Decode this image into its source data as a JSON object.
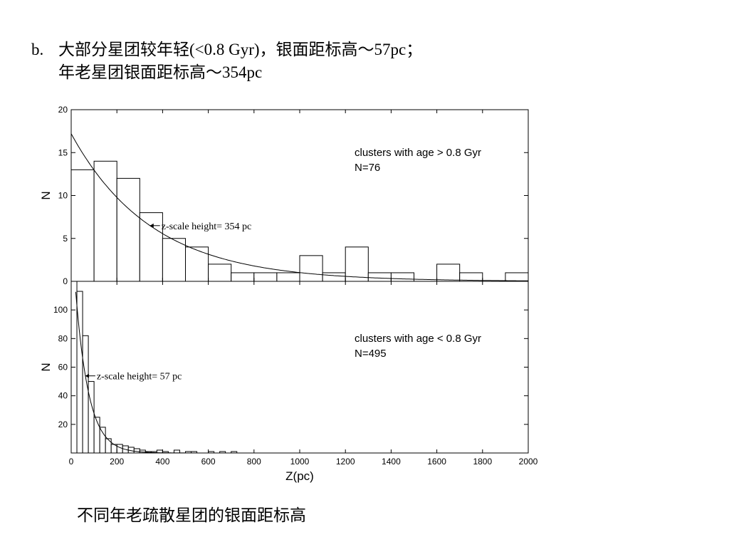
{
  "heading": {
    "marker": "b.",
    "line1": "大部分星团较年轻(<0.8 Gyr)，银面距标高～57pc；",
    "line2": "年老星团银面距标高～354pc"
  },
  "caption": "不同年老疏散星团的银面距标高",
  "chart_data": [
    {
      "type": "bar",
      "panel": "top",
      "ylabel": "N",
      "xlim": [
        0,
        2000
      ],
      "ylim": [
        0,
        20
      ],
      "yticks": [
        0,
        5,
        10,
        15,
        20
      ],
      "legend": [
        "clusters with age > 0.8 Gyr",
        "N=76"
      ],
      "legend_placement": "top-right",
      "annotation": "z-scale height= 354 pc",
      "bin_edges": [
        0,
        100,
        200,
        300,
        400,
        500,
        600,
        700,
        800,
        900,
        1000,
        1100,
        1200,
        1300,
        1400,
        1500,
        1600,
        1700,
        1800,
        1900,
        2000
      ],
      "counts": [
        13,
        14,
        12,
        8,
        5,
        4,
        2,
        1,
        1,
        1,
        3,
        1,
        4,
        1,
        1,
        0,
        2,
        1,
        0,
        1
      ],
      "fit": {
        "form": "exponential",
        "n0": 17.2,
        "scale_height": 354
      }
    },
    {
      "type": "bar",
      "panel": "bottom",
      "ylabel": "N",
      "xlabel": "Z(pc)",
      "xlim": [
        0,
        2000
      ],
      "ylim": [
        0,
        120
      ],
      "yticks": [
        20,
        40,
        60,
        80,
        100
      ],
      "xticks": [
        0,
        200,
        400,
        600,
        800,
        1000,
        1200,
        1400,
        1600,
        1800,
        2000
      ],
      "legend": [
        "clusters with age < 0.8 Gyr",
        "N=495"
      ],
      "legend_placement": "top-right",
      "annotation": "z-scale height= 57 pc",
      "bin_edges": [
        0,
        25,
        50,
        75,
        100,
        125,
        150,
        175,
        200,
        225,
        250,
        275,
        300,
        325,
        350,
        375,
        400,
        425,
        450,
        475,
        500,
        525,
        550,
        575,
        600,
        625,
        650,
        675,
        700,
        725
      ],
      "counts": [
        122,
        113,
        82,
        50,
        25,
        18,
        10,
        6,
        6,
        5,
        4,
        3,
        2,
        1,
        1,
        2,
        1,
        0,
        2,
        0,
        1,
        1,
        0,
        0,
        1,
        0,
        1,
        0,
        1
      ],
      "fit": {
        "form": "exponential",
        "n0": 160,
        "scale_height": 57
      }
    }
  ]
}
